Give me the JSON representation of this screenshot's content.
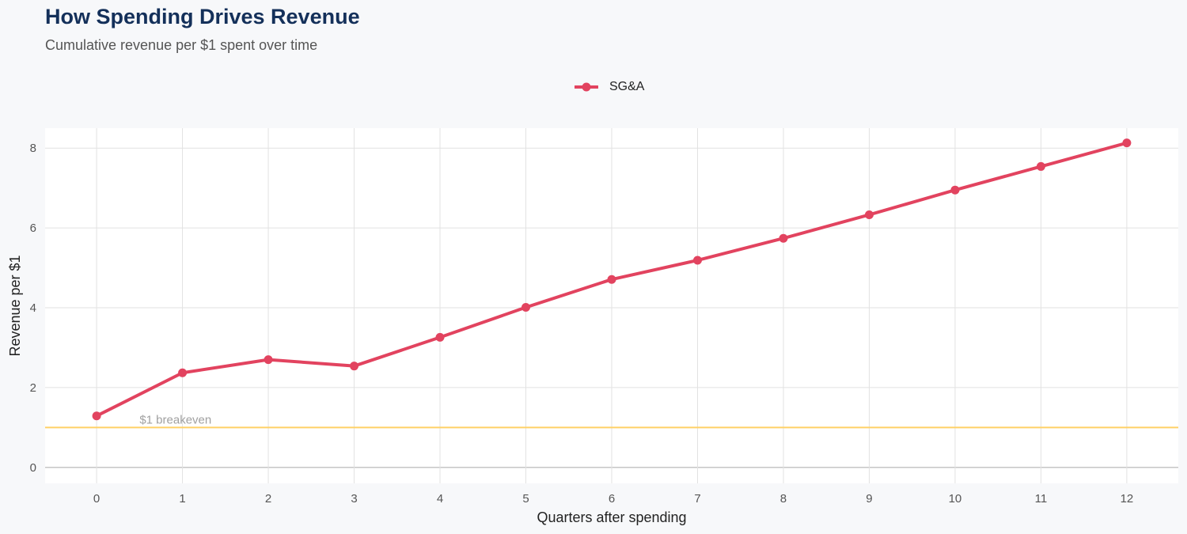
{
  "header": {
    "title": "How Spending Drives Revenue",
    "subtitle": "Cumulative revenue per $1 spent over time"
  },
  "colors": {
    "series": "#e2435f",
    "reference_line": "#ffd166",
    "grid": "#e2e2e2",
    "panel": "#ffffff",
    "background": "#f7f8fa"
  },
  "chart_data": {
    "type": "line",
    "title": "How Spending Drives Revenue",
    "subtitle": "Cumulative revenue per $1 spent over time",
    "xlabel": "Quarters after spending",
    "ylabel": "Revenue per $1",
    "x": [
      0,
      1,
      2,
      3,
      4,
      5,
      6,
      7,
      8,
      9,
      10,
      11,
      12
    ],
    "series": [
      {
        "name": "SG&A",
        "values": [
          1.29,
          2.37,
          2.7,
          2.54,
          3.26,
          4.01,
          4.71,
          5.19,
          5.74,
          6.33,
          6.95,
          7.54,
          8.13
        ]
      }
    ],
    "xlim": [
      -0.6,
      12.6
    ],
    "ylim": [
      -0.4,
      8.5
    ],
    "x_ticks": [
      "0",
      "1",
      "2",
      "3",
      "4",
      "5",
      "6",
      "7",
      "8",
      "9",
      "10",
      "11",
      "12"
    ],
    "y_ticks": [
      "0",
      "2",
      "4",
      "6",
      "8"
    ],
    "reference_line": {
      "y": 1,
      "label": "$1 breakeven"
    },
    "legend_position": "top-center",
    "grid": true
  }
}
